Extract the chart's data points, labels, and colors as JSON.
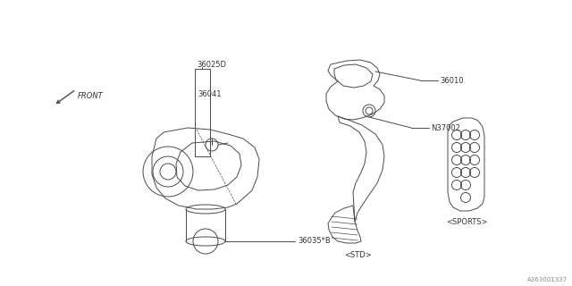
{
  "bg_color": "#ffffff",
  "line_color": "#4a4a4a",
  "text_color": "#333333",
  "diagram_id": "A363001337",
  "figsize": [
    6.4,
    3.2
  ],
  "dpi": 100,
  "xlim": [
    0,
    640
  ],
  "ylim": [
    0,
    320
  ]
}
